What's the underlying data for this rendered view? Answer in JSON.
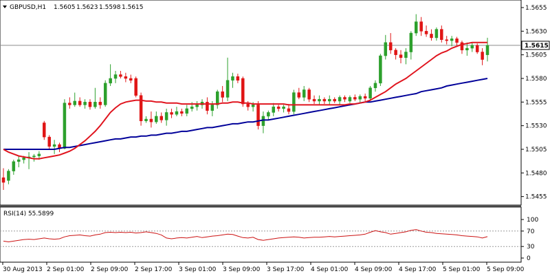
{
  "chart_data": {
    "type": "candlestick",
    "symbol_header": "GBPUSD,H1",
    "ohlc_header": [
      "1.5605",
      "1.5623",
      "1.5598",
      "1.5615"
    ],
    "current_price_label": "1.5615",
    "y_axis_ticks": [
      "1.5655",
      "1.5630",
      "1.5605",
      "1.5580",
      "1.5555",
      "1.5530",
      "1.5505",
      "1.5480",
      "1.5455"
    ],
    "ylim": [
      1.5446,
      1.5663
    ],
    "x_axis_ticks": [
      "30 Aug 2013",
      "2 Sep 01:00",
      "2 Sep 09:00",
      "2 Sep 17:00",
      "3 Sep 01:00",
      "3 Sep 09:00",
      "3 Sep 17:00",
      "4 Sep 01:00",
      "4 Sep 09:00",
      "4 Sep 17:00",
      "5 Sep 01:00",
      "5 Sep 09:00"
    ],
    "candles": [
      [
        1.5475,
        1.5485,
        1.5462,
        1.547
      ],
      [
        1.5472,
        1.5484,
        1.5468,
        1.5482
      ],
      [
        1.5482,
        1.5494,
        1.5478,
        1.5492
      ],
      [
        1.5492,
        1.5498,
        1.5486,
        1.5494
      ],
      [
        1.5494,
        1.5498,
        1.549,
        1.5496
      ],
      [
        1.5496,
        1.5502,
        1.5484,
        1.5497
      ],
      [
        1.5497,
        1.55,
        1.5492,
        1.5498
      ],
      [
        1.5498,
        1.5503,
        1.5494,
        1.55
      ],
      [
        1.5533,
        1.5535,
        1.5515,
        1.5518
      ],
      [
        1.5518,
        1.552,
        1.5505,
        1.5508
      ],
      [
        1.5508,
        1.5515,
        1.55,
        1.551
      ],
      [
        1.551,
        1.5512,
        1.5502,
        1.5506
      ],
      [
        1.5506,
        1.5558,
        1.5505,
        1.5554
      ],
      [
        1.5554,
        1.556,
        1.5548,
        1.5552
      ],
      [
        1.5552,
        1.5565,
        1.555,
        1.5556
      ],
      [
        1.5556,
        1.556,
        1.555,
        1.5552
      ],
      [
        1.5552,
        1.5558,
        1.5548,
        1.5555
      ],
      [
        1.5555,
        1.5558,
        1.5547,
        1.555
      ],
      [
        1.555,
        1.557,
        1.5548,
        1.5555
      ],
      [
        1.5555,
        1.556,
        1.5548,
        1.5552
      ],
      [
        1.5552,
        1.5578,
        1.555,
        1.5575
      ],
      [
        1.5575,
        1.5595,
        1.5572,
        1.558
      ],
      [
        1.558,
        1.5588,
        1.5575,
        1.5584
      ],
      [
        1.5584,
        1.5588,
        1.558,
        1.5582
      ],
      [
        1.5582,
        1.5586,
        1.5576,
        1.558
      ],
      [
        1.558,
        1.5584,
        1.5575,
        1.5578
      ],
      [
        1.558,
        1.5582,
        1.556,
        1.5562
      ],
      [
        1.5562,
        1.5565,
        1.553,
        1.5535
      ],
      [
        1.5535,
        1.554,
        1.5533,
        1.5537
      ],
      [
        1.5537,
        1.5545,
        1.5528,
        1.5534
      ],
      [
        1.5534,
        1.5545,
        1.5532,
        1.554
      ],
      [
        1.554,
        1.5544,
        1.5533,
        1.5536
      ],
      [
        1.5536,
        1.5548,
        1.553,
        1.5544
      ],
      [
        1.5544,
        1.5548,
        1.5538,
        1.5542
      ],
      [
        1.5542,
        1.555,
        1.554,
        1.5545
      ],
      [
        1.5545,
        1.5548,
        1.554,
        1.5543
      ],
      [
        1.5543,
        1.5552,
        1.554,
        1.5548
      ],
      [
        1.5548,
        1.5555,
        1.5545,
        1.555
      ],
      [
        1.555,
        1.5556,
        1.5546,
        1.5552
      ],
      [
        1.5552,
        1.5558,
        1.5548,
        1.5555
      ],
      [
        1.5555,
        1.556,
        1.5542,
        1.5546
      ],
      [
        1.5546,
        1.5556,
        1.554,
        1.5552
      ],
      [
        1.5552,
        1.5568,
        1.5548,
        1.5566
      ],
      [
        1.5566,
        1.5572,
        1.5555,
        1.556
      ],
      [
        1.556,
        1.5602,
        1.5556,
        1.5578
      ],
      [
        1.5578,
        1.5586,
        1.557,
        1.5582
      ],
      [
        1.5582,
        1.5585,
        1.5575,
        1.5578
      ],
      [
        1.558,
        1.5582,
        1.555,
        1.5553
      ],
      [
        1.5553,
        1.5556,
        1.5546,
        1.555
      ],
      [
        1.555,
        1.5555,
        1.5545,
        1.5552
      ],
      [
        1.5552,
        1.5556,
        1.5526,
        1.553
      ],
      [
        1.553,
        1.5545,
        1.5522,
        1.554
      ],
      [
        1.554,
        1.5546,
        1.5536,
        1.5544
      ],
      [
        1.5544,
        1.5554,
        1.554,
        1.555
      ],
      [
        1.555,
        1.5552,
        1.5545,
        1.5548
      ],
      [
        1.5548,
        1.5552,
        1.5544,
        1.555
      ],
      [
        1.5548,
        1.5553,
        1.5542,
        1.5545
      ],
      [
        1.5545,
        1.5568,
        1.5542,
        1.5565
      ],
      [
        1.5565,
        1.557,
        1.5558,
        1.556
      ],
      [
        1.556,
        1.5572,
        1.5556,
        1.5568
      ],
      [
        1.5568,
        1.557,
        1.5555,
        1.5558
      ],
      [
        1.5558,
        1.5562,
        1.5553,
        1.5556
      ],
      [
        1.5556,
        1.5562,
        1.5552,
        1.5558
      ],
      [
        1.5558,
        1.556,
        1.5553,
        1.5556
      ],
      [
        1.5556,
        1.5562,
        1.5552,
        1.5558
      ],
      [
        1.5558,
        1.556,
        1.5554,
        1.5556
      ],
      [
        1.5556,
        1.5562,
        1.5552,
        1.556
      ],
      [
        1.556,
        1.5562,
        1.5555,
        1.5558
      ],
      [
        1.5556,
        1.5562,
        1.5554,
        1.556
      ],
      [
        1.556,
        1.5563,
        1.5556,
        1.5558
      ],
      [
        1.5558,
        1.5563,
        1.5554,
        1.5561
      ],
      [
        1.5561,
        1.5564,
        1.5556,
        1.5559
      ],
      [
        1.5559,
        1.5572,
        1.5556,
        1.557
      ],
      [
        1.557,
        1.5578,
        1.5566,
        1.5575
      ],
      [
        1.5575,
        1.5606,
        1.5572,
        1.5604
      ],
      [
        1.5604,
        1.5626,
        1.56,
        1.5618
      ],
      [
        1.5618,
        1.5628,
        1.5606,
        1.561
      ],
      [
        1.561,
        1.5612,
        1.56,
        1.5605
      ],
      [
        1.5605,
        1.561,
        1.5596,
        1.5602
      ],
      [
        1.5602,
        1.5612,
        1.5595,
        1.5608
      ],
      [
        1.5608,
        1.563,
        1.56,
        1.5628
      ],
      [
        1.5628,
        1.5648,
        1.5625,
        1.564
      ],
      [
        1.564,
        1.5645,
        1.5625,
        1.563
      ],
      [
        1.563,
        1.5636,
        1.5624,
        1.5627
      ],
      [
        1.5627,
        1.5632,
        1.562,
        1.5623
      ],
      [
        1.5623,
        1.5634,
        1.562,
        1.5632
      ],
      [
        1.5632,
        1.5636,
        1.5618,
        1.5621
      ],
      [
        1.5621,
        1.5625,
        1.5616,
        1.562
      ],
      [
        1.562,
        1.5625,
        1.5614,
        1.5622
      ],
      [
        1.5622,
        1.5624,
        1.5615,
        1.5618
      ],
      [
        1.5618,
        1.562,
        1.5606,
        1.561
      ],
      [
        1.561,
        1.5618,
        1.5604,
        1.5612
      ],
      [
        1.5612,
        1.5618,
        1.5608,
        1.5615
      ],
      [
        1.5615,
        1.5617,
        1.5606,
        1.5608
      ],
      [
        1.5608,
        1.5612,
        1.5594,
        1.56
      ],
      [
        1.5605,
        1.5623,
        1.5598,
        1.5615
      ]
    ],
    "ma_fast": [
      1.5505,
      1.5502,
      1.55,
      1.5498,
      1.5497,
      1.5496,
      1.5495,
      1.5495,
      1.5496,
      1.5497,
      1.5498,
      1.5499,
      1.5501,
      1.5503,
      1.5506,
      1.551,
      1.5514,
      1.5519,
      1.5524,
      1.553,
      1.5537,
      1.5544,
      1.5549,
      1.5553,
      1.5555,
      1.5556,
      1.5557,
      1.5557,
      1.5556,
      1.5556,
      1.5555,
      1.5555,
      1.5554,
      1.5554,
      1.5554,
      1.5553,
      1.5553,
      1.5553,
      1.5553,
      1.5553,
      1.5553,
      1.5553,
      1.5553,
      1.5554,
      1.5554,
      1.5555,
      1.5555,
      1.5554,
      1.5554,
      1.5553,
      1.5553,
      1.5553,
      1.5553,
      1.5553,
      1.5553,
      1.5553,
      1.5552,
      1.5552,
      1.5552,
      1.5552,
      1.5552,
      1.5552,
      1.5552,
      1.5552,
      1.5552,
      1.5552,
      1.5552,
      1.5552,
      1.5553,
      1.5553,
      1.5554,
      1.5555,
      1.5557,
      1.556,
      1.5563,
      1.5566,
      1.557,
      1.5574,
      1.5577,
      1.558,
      1.5584,
      1.5588,
      1.5592,
      1.5596,
      1.56,
      1.5604,
      1.5607,
      1.5609,
      1.5612,
      1.5614,
      1.5616,
      1.5617,
      1.5618,
      1.5618,
      1.5618,
      1.5618
    ],
    "ma_slow": [
      1.5505,
      1.5505,
      1.5505,
      1.5505,
      1.5505,
      1.5505,
      1.5505,
      1.5505,
      1.5505,
      1.5505,
      1.5505,
      1.5506,
      1.5507,
      1.5507,
      1.5508,
      1.5509,
      1.551,
      1.5511,
      1.5512,
      1.5513,
      1.5514,
      1.5515,
      1.5516,
      1.5516,
      1.5517,
      1.5518,
      1.5518,
      1.5519,
      1.5519,
      1.552,
      1.552,
      1.5521,
      1.5522,
      1.5522,
      1.5523,
      1.5524,
      1.5524,
      1.5525,
      1.5526,
      1.5527,
      1.5528,
      1.5528,
      1.5529,
      1.553,
      1.5531,
      1.5532,
      1.5532,
      1.5533,
      1.5534,
      1.5534,
      1.5535,
      1.5536,
      1.5536,
      1.5537,
      1.5538,
      1.5539,
      1.554,
      1.5541,
      1.5542,
      1.5543,
      1.5544,
      1.5545,
      1.5546,
      1.5547,
      1.5548,
      1.5549,
      1.555,
      1.5551,
      1.5552,
      1.5553,
      1.5554,
      1.5555,
      1.5555,
      1.5556,
      1.5557,
      1.5558,
      1.5559,
      1.556,
      1.5561,
      1.5562,
      1.5563,
      1.5564,
      1.5566,
      1.5567,
      1.5568,
      1.5569,
      1.557,
      1.5572,
      1.5573,
      1.5574,
      1.5575,
      1.5576,
      1.5577,
      1.5578,
      1.5579,
      1.558
    ],
    "rsi": {
      "header": "RSI(14) 55.5899",
      "ticks": [
        "100",
        "70",
        "30",
        "0"
      ],
      "levels": [
        70,
        30
      ],
      "values": [
        44,
        42,
        44,
        46,
        48,
        49,
        48,
        50,
        52,
        50,
        49,
        50,
        55,
        58,
        59,
        60,
        58,
        57,
        60,
        62,
        66,
        67,
        66,
        67,
        66,
        67,
        65,
        66,
        68,
        66,
        64,
        60,
        52,
        50,
        52,
        53,
        52,
        54,
        56,
        53,
        55,
        57,
        58,
        60,
        62,
        61,
        57,
        53,
        52,
        54,
        48,
        46,
        48,
        50,
        52,
        53,
        54,
        55,
        54,
        52,
        53,
        54,
        54,
        55,
        56,
        55,
        56,
        57,
        58,
        59,
        60,
        62,
        67,
        71,
        68,
        66,
        62,
        64,
        66,
        68,
        72,
        74,
        70,
        67,
        66,
        64,
        63,
        62,
        61,
        60,
        58,
        57,
        56,
        55,
        52,
        55.59
      ]
    }
  }
}
